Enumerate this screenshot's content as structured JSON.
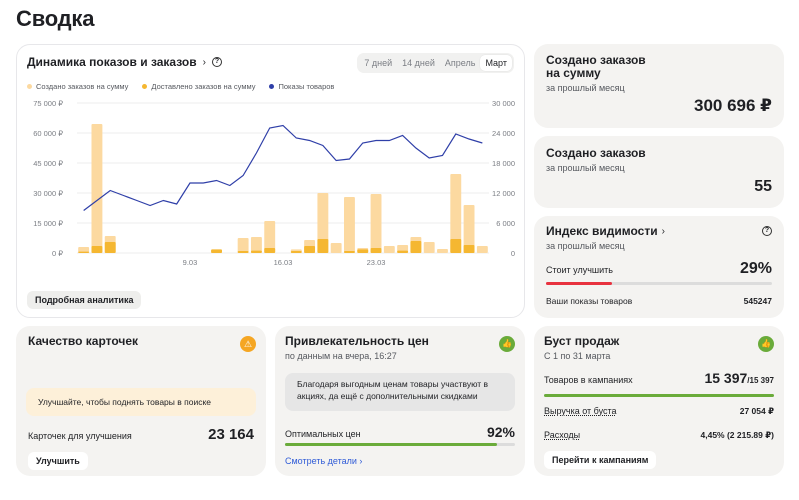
{
  "page_title": "Сводка",
  "chart_card": {
    "title": "Динамика показов и заказов",
    "tabs": [
      "7 дней",
      "14 дней",
      "Апрель",
      "Март"
    ],
    "active_tab": "Март",
    "legend": [
      {
        "label": "Создано заказов на сумму",
        "color": "#fcd9a0"
      },
      {
        "label": "Доставлено заказов на сумму",
        "color": "#f5b731"
      },
      {
        "label": "Показы товаров",
        "color": "#2f3fa8"
      }
    ],
    "analytics_button": "Подробная аналитика"
  },
  "chart_data": {
    "type": "bar+line",
    "left_axis_ticks": [
      "75 000 ₽",
      "60 000 ₽",
      "45 000 ₽",
      "30 000 ₽",
      "15 000 ₽",
      "0 ₽"
    ],
    "right_axis_ticks": [
      "30 000",
      "24 000",
      "18 000",
      "12 000",
      "6 000",
      "0"
    ],
    "ylim_left": [
      0,
      75000
    ],
    "ylim_right": [
      0,
      30000
    ],
    "x_tick_labels": [
      {
        "day": 9,
        "label": "9.03"
      },
      {
        "day": 16,
        "label": "16.03"
      },
      {
        "day": 23,
        "label": "23.03"
      }
    ],
    "days": [
      1,
      2,
      3,
      4,
      5,
      6,
      7,
      8,
      9,
      10,
      11,
      12,
      13,
      14,
      15,
      16,
      17,
      18,
      19,
      20,
      21,
      22,
      23,
      24,
      25,
      26,
      27,
      28,
      29,
      30,
      31
    ],
    "series": [
      {
        "name": "Создано заказов на сумму",
        "values": [
          3000,
          64500,
          8500,
          0,
          0,
          0,
          0,
          0,
          0,
          0,
          1500,
          0,
          7500,
          8000,
          16000,
          0,
          1800,
          6500,
          30000,
          5000,
          28000,
          2500,
          29500,
          3500,
          4000,
          8000,
          5500,
          2000,
          39500,
          24000,
          3500
        ]
      },
      {
        "name": "Доставлено заказов на сумму",
        "values": [
          700,
          3500,
          5500,
          0,
          0,
          0,
          0,
          0,
          0,
          0,
          1800,
          0,
          1000,
          1200,
          2500,
          0,
          1000,
          3500,
          7000,
          0,
          1000,
          1800,
          2500,
          0,
          1200,
          6000,
          0,
          0,
          7000,
          4000,
          0
        ]
      },
      {
        "name": "Показы товаров",
        "values": [
          8500,
          10500,
          12500,
          11500,
          10500,
          9500,
          10500,
          9800,
          14000,
          14000,
          14500,
          13500,
          15500,
          20000,
          25000,
          25500,
          23000,
          22500,
          21500,
          18500,
          18800,
          22000,
          22500,
          22500,
          23500,
          21000,
          19000,
          19500,
          23800,
          22800,
          22000
        ]
      }
    ]
  },
  "orders_sum_card": {
    "title": "Создано заказов на сумму",
    "subtitle": "за прошлый месяц",
    "value": "300 696 ₽"
  },
  "orders_count_card": {
    "title": "Создано заказов",
    "subtitle": "за прошлый месяц",
    "value": "55"
  },
  "visibility_card": {
    "title": "Индекс видимости",
    "subtitle": "за прошлый месяц",
    "improve_label": "Стоит улучшить",
    "percent": "29%",
    "progress": 0.29,
    "impressions_label": "Ваши показы товаров",
    "impressions_value": "545247",
    "bar_color": "#e8323f"
  },
  "quality_card": {
    "title": "Качество карточек",
    "hint": "Улучшайте, чтобы поднять товары в поиске",
    "count_label": "Карточек для улучшения",
    "count_value": "23 164",
    "button": "Улучшить",
    "badge_color": "#f5a623",
    "badge_icon": "⚠"
  },
  "price_card": {
    "title": "Привлекательность цен",
    "subtitle": "по данным на вчера, 16:27",
    "info": "Благодаря выгодным ценам товары участвуют в акциях, да ещё с дополнительными скидками",
    "label": "Оптимальных цен",
    "percent": "92%",
    "progress": 0.92,
    "link": "Смотреть детали",
    "badge_color": "#6aab3a",
    "badge_icon": "👍"
  },
  "boost_card": {
    "title": "Буст продаж",
    "subtitle": "С 1 по 31 марта",
    "goods_label": "Товаров в кампаниях",
    "goods_value": "15 397",
    "goods_total": "/15 397",
    "revenue_label": "Выручка от буста",
    "revenue_value": "27 054 ₽",
    "expenses_label": "Расходы",
    "expenses_value": "4,45% (2 215.89 ₽)",
    "button": "Перейти к кампаниям",
    "badge_color": "#6aab3a",
    "badge_icon": "👍"
  }
}
